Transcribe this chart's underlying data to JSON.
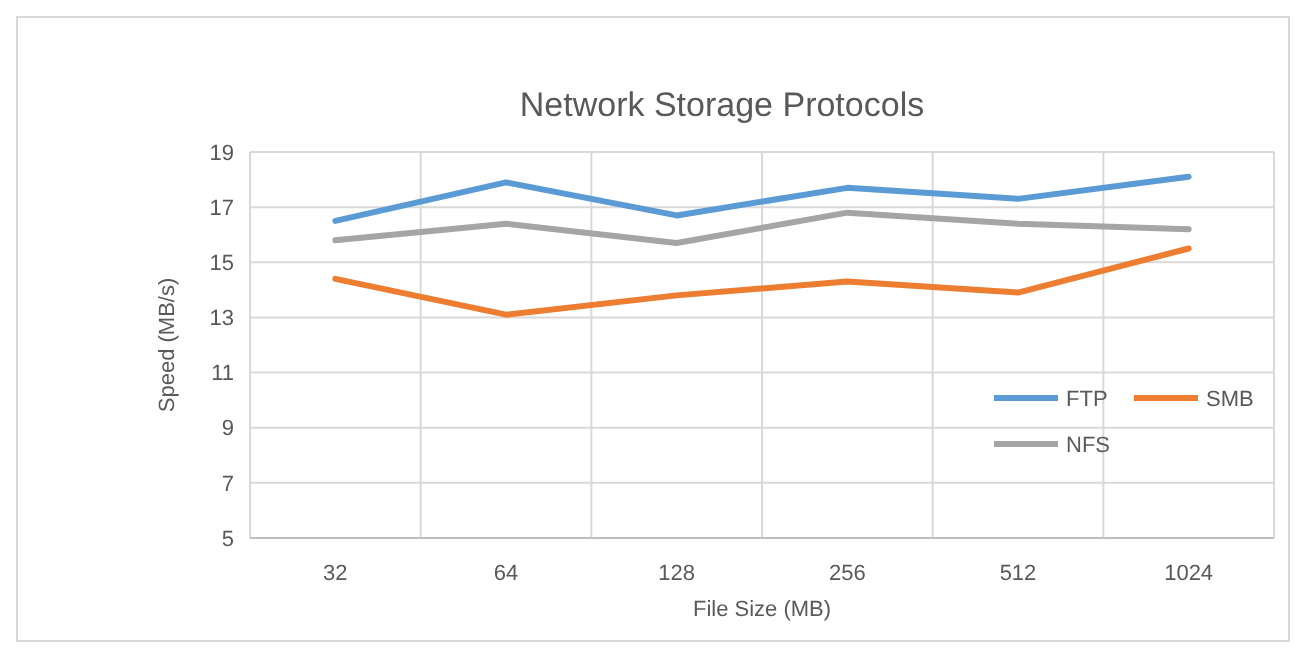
{
  "chart_data": {
    "type": "line",
    "title": "Network Storage Protocols",
    "xlabel": "File Size (MB)",
    "ylabel": "Speed (MB/s)",
    "categories": [
      "32",
      "64",
      "128",
      "256",
      "512",
      "1024"
    ],
    "series": [
      {
        "name": "FTP",
        "color": "#5b9bd5",
        "values": [
          16.5,
          17.9,
          16.7,
          17.7,
          17.3,
          18.1
        ]
      },
      {
        "name": "SMB",
        "color": "#ed7d31",
        "values": [
          14.4,
          13.1,
          13.8,
          14.3,
          13.9,
          15.5
        ]
      },
      {
        "name": "NFS",
        "color": "#a5a5a5",
        "values": [
          15.8,
          16.4,
          15.7,
          16.8,
          16.4,
          16.2
        ]
      }
    ],
    "ylim": [
      5,
      19
    ],
    "yticks": [
      5,
      7,
      9,
      11,
      13,
      15,
      17,
      19
    ],
    "grid": true,
    "legend": "bottom right",
    "marker": "none",
    "line_style": "solid"
  }
}
